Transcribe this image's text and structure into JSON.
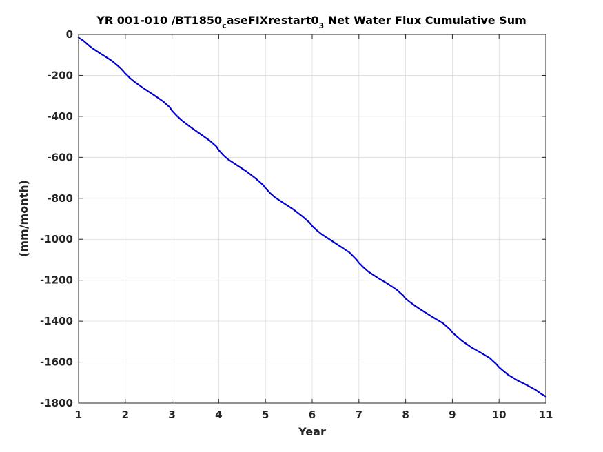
{
  "chart_data": {
    "type": "line",
    "title": {
      "part1": "YR 001-010 /BT1850",
      "sub1": "c",
      "part2": "aseFIXrestart0",
      "sub2": "3",
      "part3": " Net Water Flux Cumulative Sum"
    },
    "xlabel": "Year",
    "ylabel": "(mm/month)",
    "xlim": [
      1,
      11
    ],
    "ylim": [
      -1800,
      0
    ],
    "xticks": [
      1,
      2,
      3,
      4,
      5,
      6,
      7,
      8,
      9,
      10,
      11
    ],
    "yticks": [
      0,
      -200,
      -400,
      -600,
      -800,
      -1000,
      -1200,
      -1400,
      -1600,
      -1800
    ],
    "grid": true,
    "line_color": "#0000cc",
    "series": [
      {
        "x": [
          1.0,
          1.1,
          1.2,
          1.3,
          1.4,
          1.5,
          1.6,
          1.7,
          1.8,
          1.9,
          2.0,
          2.1,
          2.2,
          2.4,
          2.6,
          2.8,
          2.95,
          3.0,
          3.1,
          3.2,
          3.4,
          3.6,
          3.8,
          3.95,
          4.0,
          4.1,
          4.2,
          4.4,
          4.6,
          4.8,
          4.95,
          5.0,
          5.1,
          5.2,
          5.4,
          5.6,
          5.8,
          5.95,
          6.0,
          6.1,
          6.2,
          6.4,
          6.6,
          6.8,
          6.95,
          7.0,
          7.1,
          7.2,
          7.4,
          7.6,
          7.8,
          7.95,
          8.0,
          8.1,
          8.2,
          8.4,
          8.6,
          8.8,
          8.95,
          9.0,
          9.1,
          9.2,
          9.4,
          9.6,
          9.8,
          9.95,
          10.0,
          10.1,
          10.2,
          10.4,
          10.6,
          10.8,
          10.9,
          11.0
        ],
        "y": [
          -15,
          -30,
          -50,
          -68,
          -83,
          -98,
          -112,
          -127,
          -145,
          -165,
          -190,
          -213,
          -232,
          -264,
          -294,
          -325,
          -355,
          -372,
          -397,
          -418,
          -453,
          -485,
          -517,
          -547,
          -565,
          -590,
          -610,
          -640,
          -670,
          -705,
          -735,
          -750,
          -775,
          -795,
          -825,
          -855,
          -890,
          -920,
          -935,
          -957,
          -975,
          -1005,
          -1035,
          -1065,
          -1100,
          -1115,
          -1138,
          -1158,
          -1188,
          -1215,
          -1245,
          -1275,
          -1290,
          -1308,
          -1325,
          -1355,
          -1383,
          -1410,
          -1440,
          -1455,
          -1475,
          -1495,
          -1527,
          -1553,
          -1580,
          -1612,
          -1625,
          -1645,
          -1663,
          -1690,
          -1713,
          -1738,
          -1755,
          -1768
        ]
      }
    ]
  }
}
